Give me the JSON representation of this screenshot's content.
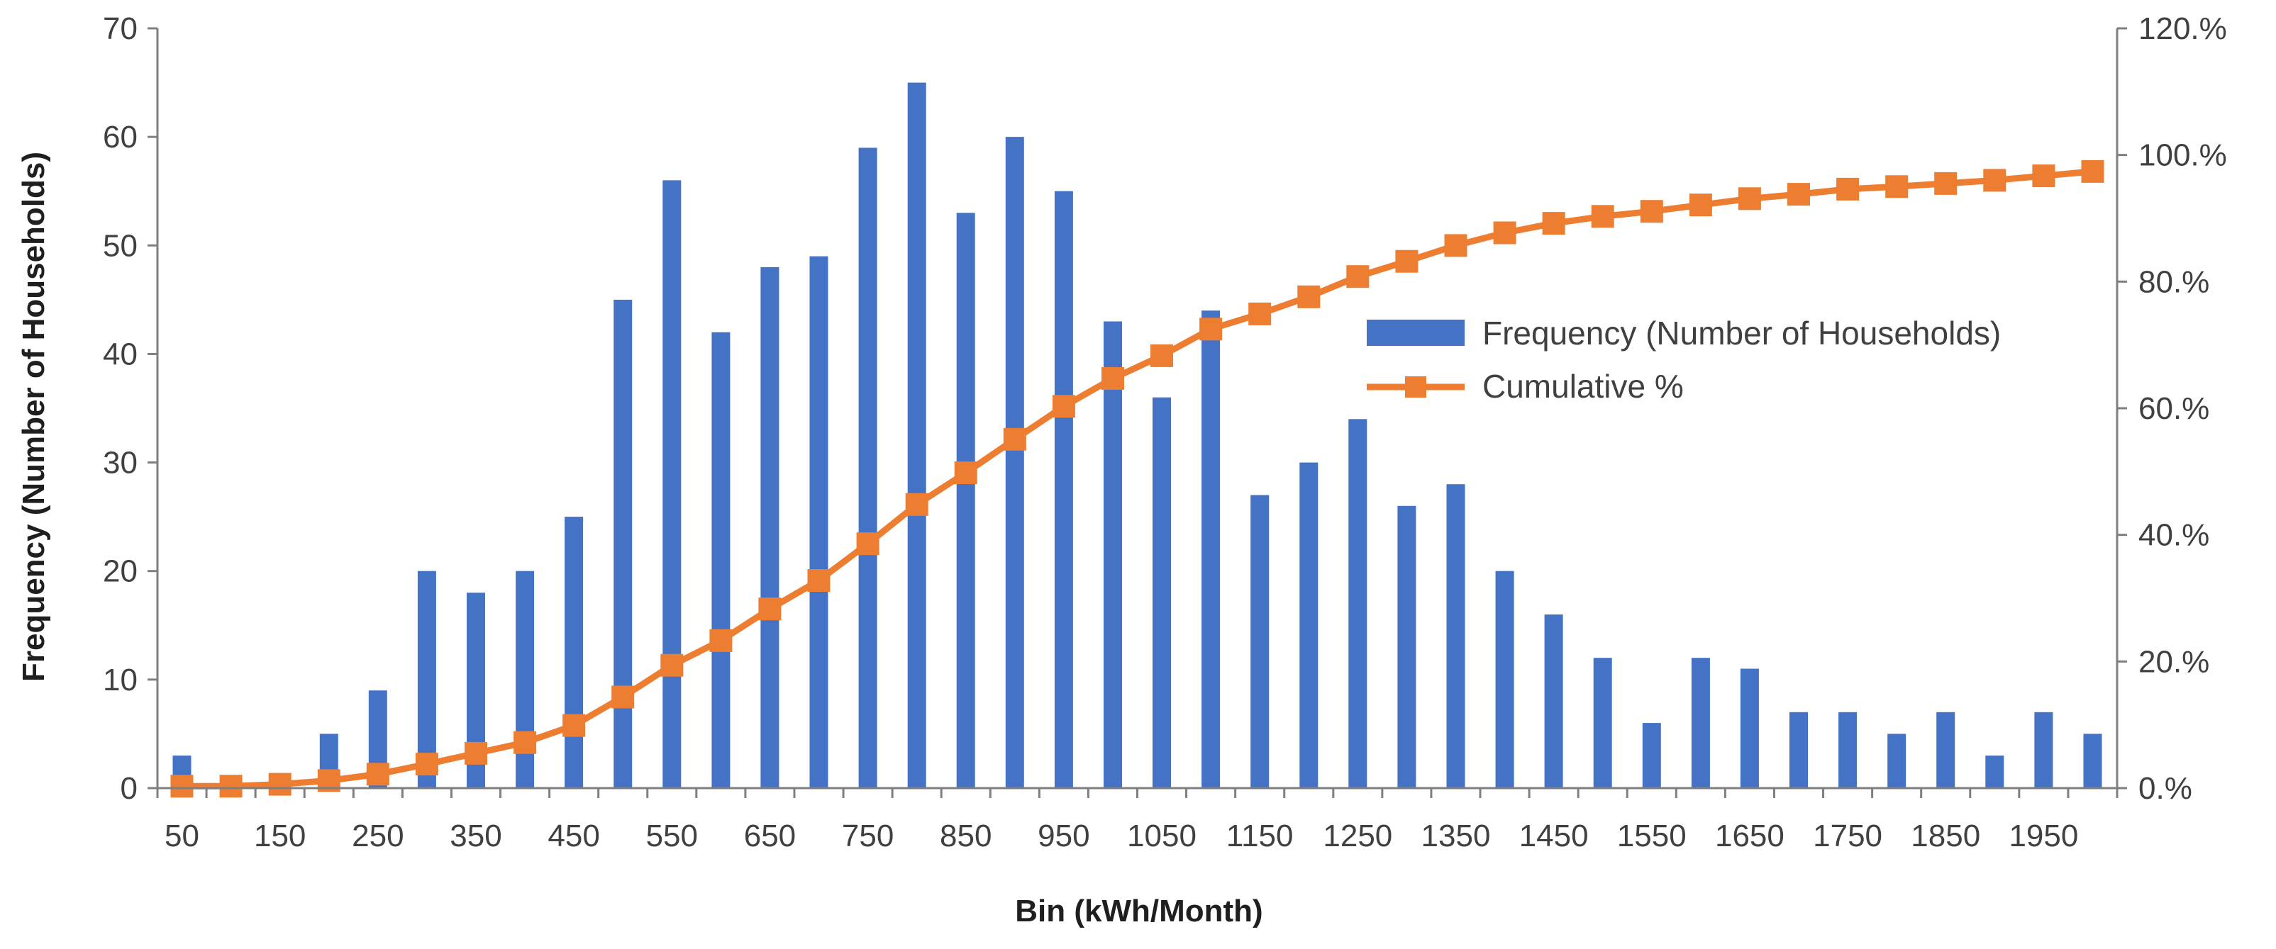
{
  "chart_data": {
    "type": "bar",
    "title": "",
    "xlabel": "Bin (kWh/Month)",
    "ylabel": "Frequency (Number of Households)",
    "y2label": "",
    "ylim": [
      0,
      70
    ],
    "y2lim": [
      0,
      120
    ],
    "yticks": [
      "0",
      "10",
      "20",
      "30",
      "40",
      "50",
      "60",
      "70"
    ],
    "y2ticks": [
      "0.%",
      "20.%",
      "40.%",
      "60.%",
      "80.%",
      "100.%",
      "120.%"
    ],
    "y2tick_values": [
      0,
      20,
      40,
      60,
      80,
      100,
      120
    ],
    "grid": false,
    "legend_position": "center-right",
    "categories": [
      50,
      100,
      150,
      200,
      250,
      300,
      350,
      400,
      450,
      500,
      550,
      600,
      650,
      700,
      750,
      800,
      850,
      900,
      950,
      1000,
      1050,
      1100,
      1150,
      1200,
      1250,
      1300,
      1350,
      1400,
      1450,
      1500,
      1550,
      1600,
      1650,
      1700,
      1750,
      1800,
      1850,
      1900,
      1950,
      2000
    ],
    "x_tick_labels": [
      "50",
      "150",
      "250",
      "350",
      "450",
      "550",
      "650",
      "750",
      "850",
      "950",
      "1050",
      "1150",
      "1250",
      "1350",
      "1450",
      "1550",
      "1650",
      "1750",
      "1850",
      "1950"
    ],
    "series": [
      {
        "name": "Frequency (Number of Households)",
        "type": "bar",
        "axis": "left",
        "color": "#4472C4",
        "values": [
          3,
          0,
          0,
          5,
          9,
          20,
          18,
          20,
          25,
          45,
          56,
          42,
          48,
          49,
          59,
          65,
          53,
          60,
          55,
          43,
          36,
          44,
          27,
          30,
          34,
          26,
          28,
          20,
          16,
          12,
          6,
          12,
          11,
          7,
          7,
          5,
          7,
          3,
          7,
          5
        ]
      },
      {
        "name": "Cumulative %",
        "type": "line",
        "axis": "right",
        "color": "#ED7D31",
        "marker": "square",
        "values": [
          0.3,
          0.3,
          0.6,
          1.2,
          2.2,
          3.8,
          5.5,
          7.2,
          9.9,
          14.4,
          19.4,
          23.3,
          28.3,
          32.8,
          38.6,
          44.8,
          49.8,
          55.1,
          60.3,
          64.7,
          68.3,
          72.5,
          74.9,
          77.6,
          80.8,
          83.2,
          85.7,
          87.7,
          89.2,
          90.3,
          91.1,
          92.1,
          93.1,
          93.8,
          94.6,
          95.0,
          95.5,
          96.0,
          96.7,
          97.4
        ]
      }
    ]
  }
}
